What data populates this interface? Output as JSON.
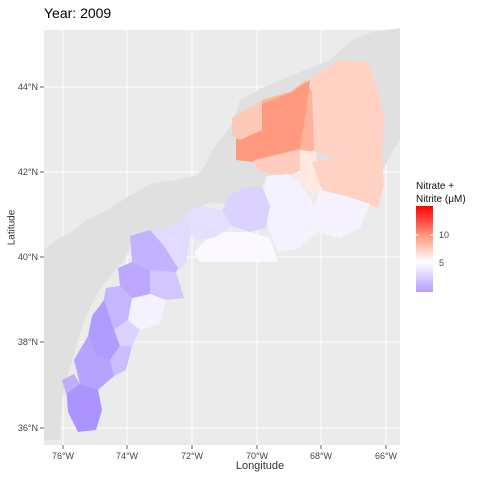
{
  "title": "Year: 2009",
  "xlabel": "Longitude",
  "ylabel": "Latitude",
  "legend": {
    "title_line1": "Nitrate +",
    "title_line2": "Nitrite (μM)",
    "ticks": [
      "10",
      "5"
    ]
  },
  "x_ticks": [
    "76°W",
    "74°W",
    "72°W",
    "70°W",
    "68°W",
    "66°W"
  ],
  "y_ticks": [
    "44°N",
    "42°N",
    "40°N",
    "38°N",
    "36°N"
  ],
  "colors": {
    "panel": "#ebebeb",
    "land": "#e0e0e0",
    "high": "#ff0000",
    "mid": "#ffffff",
    "low": "#b59cff"
  }
}
